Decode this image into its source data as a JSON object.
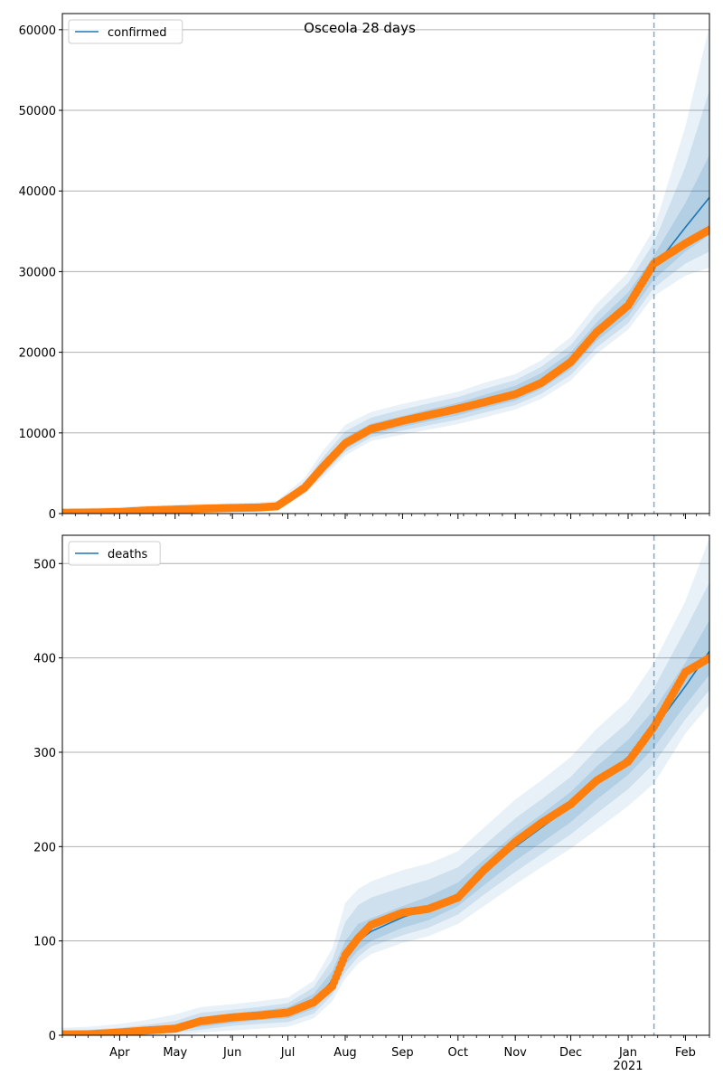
{
  "figure": {
    "title": "Osceola 28 days"
  },
  "colors": {
    "model": "#1f77b4",
    "observed": "#ff7f0e",
    "band": "#1f77b4",
    "grid": "#b0b0b0",
    "cutoff": "#1f77b4"
  },
  "chart_data": [
    {
      "type": "line",
      "name": "confirmed-panel",
      "legend": "confirmed",
      "legend_loc": "top-left",
      "x_range": [
        "2020-03-01",
        "2021-02-14"
      ],
      "ylim": [
        0,
        62000
      ],
      "yticks": [
        0,
        10000,
        20000,
        30000,
        40000,
        50000,
        60000
      ],
      "grid": "y",
      "forecast_start": "2021-01-15",
      "observed": {
        "x": [
          "2020-03-01",
          "2020-03-15",
          "2020-04-01",
          "2020-04-15",
          "2020-05-01",
          "2020-05-15",
          "2020-06-01",
          "2020-06-15",
          "2020-06-25",
          "2020-07-01",
          "2020-07-10",
          "2020-07-20",
          "2020-08-01",
          "2020-08-15",
          "2020-09-01",
          "2020-09-15",
          "2020-10-01",
          "2020-10-15",
          "2020-11-01",
          "2020-11-15",
          "2020-12-01",
          "2020-12-15",
          "2021-01-01",
          "2021-01-15",
          "2021-02-01",
          "2021-02-14"
        ],
        "y": [
          100,
          120,
          200,
          380,
          500,
          600,
          700,
          750,
          900,
          1800,
          3200,
          5800,
          8700,
          10500,
          11500,
          12200,
          13000,
          13800,
          14800,
          16200,
          18800,
          22500,
          25800,
          31000,
          33500,
          35200
        ]
      },
      "fit": {
        "x": [
          "2020-03-01",
          "2020-03-15",
          "2020-04-01",
          "2020-04-15",
          "2020-05-01",
          "2020-05-15",
          "2020-06-01",
          "2020-06-15",
          "2020-06-25",
          "2020-07-01",
          "2020-07-10",
          "2020-07-20",
          "2020-08-01",
          "2020-08-15",
          "2020-09-01",
          "2020-09-15",
          "2020-10-01",
          "2020-10-15",
          "2020-11-01",
          "2020-11-15",
          "2020-12-01",
          "2020-12-15",
          "2021-01-01",
          "2021-01-15",
          "2021-02-01",
          "2021-02-14"
        ],
        "y": [
          100,
          120,
          200,
          380,
          500,
          600,
          700,
          750,
          900,
          1800,
          3100,
          5500,
          8600,
          10400,
          11400,
          12200,
          13000,
          13900,
          15000,
          16500,
          19000,
          22600,
          26000,
          30500,
          35500,
          39200
        ]
      },
      "bands": [
        {
          "lower": [
            0,
            0,
            50,
            200,
            300,
            400,
            500,
            550,
            650,
            1300,
            2400,
            4500,
            7200,
            9000,
            9800,
            10400,
            11100,
            11900,
            12900,
            14200,
            16500,
            19800,
            22800,
            27000,
            29500,
            30500
          ],
          "upper": [
            600,
            700,
            800,
            1000,
            1100,
            1200,
            1300,
            1400,
            1600,
            2700,
            4400,
            7800,
            11000,
            12600,
            13600,
            14300,
            15100,
            16200,
            17300,
            19000,
            21900,
            26000,
            29900,
            35300,
            48000,
            60500
          ]
        },
        {
          "lower": [
            20,
            40,
            100,
            260,
            360,
            460,
            560,
            610,
            720,
            1450,
            2650,
            4850,
            7650,
            9450,
            10300,
            10950,
            11650,
            12500,
            13450,
            14850,
            17200,
            20600,
            23600,
            28000,
            31000,
            32500
          ],
          "upper": [
            350,
            400,
            500,
            700,
            800,
            900,
            1000,
            1050,
            1250,
            2300,
            3850,
            7000,
            10200,
            11900,
            12900,
            13650,
            14450,
            15450,
            16550,
            18200,
            20900,
            24800,
            28600,
            33600,
            43000,
            52500
          ]
        },
        {
          "lower": [
            50,
            70,
            140,
            310,
            420,
            520,
            620,
            670,
            790,
            1580,
            2830,
            5140,
            8020,
            9800,
            10750,
            11450,
            12200,
            13050,
            14000,
            15450,
            17900,
            21400,
            24500,
            29000,
            32500,
            34500
          ],
          "upper": [
            200,
            230,
            320,
            490,
            600,
            700,
            800,
            850,
            1030,
            2050,
            3450,
            6300,
            9450,
            11150,
            12100,
            12900,
            13750,
            14700,
            15850,
            17400,
            20000,
            23700,
            27400,
            32000,
            38500,
            44500
          ]
        }
      ]
    },
    {
      "type": "line",
      "name": "deaths-panel",
      "legend": "deaths",
      "legend_loc": "top-left",
      "x_range": [
        "2020-03-01",
        "2021-02-14"
      ],
      "ylim": [
        0,
        530
      ],
      "yticks": [
        0,
        100,
        200,
        300,
        400,
        500
      ],
      "grid": "y",
      "forecast_start": "2021-01-15",
      "x_tick_labels": [
        {
          "label": "Apr",
          "date": "2020-04-01"
        },
        {
          "label": "May",
          "date": "2020-05-01"
        },
        {
          "label": "Jun",
          "date": "2020-06-01"
        },
        {
          "label": "Jul",
          "date": "2020-07-01"
        },
        {
          "label": "Aug",
          "date": "2020-08-01"
        },
        {
          "label": "Sep",
          "date": "2020-09-01"
        },
        {
          "label": "Oct",
          "date": "2020-10-01"
        },
        {
          "label": "Nov",
          "date": "2020-11-01"
        },
        {
          "label": "Dec",
          "date": "2020-12-01"
        },
        {
          "label": "Jan",
          "date": "2021-01-01",
          "sublabel": "2021"
        },
        {
          "label": "Feb",
          "date": "2021-02-01"
        }
      ],
      "observed": {
        "x": [
          "2020-03-01",
          "2020-03-15",
          "2020-04-01",
          "2020-04-15",
          "2020-05-01",
          "2020-05-15",
          "2020-06-01",
          "2020-06-15",
          "2020-07-01",
          "2020-07-15",
          "2020-07-25",
          "2020-08-01",
          "2020-08-08",
          "2020-08-15",
          "2020-09-01",
          "2020-09-15",
          "2020-10-01",
          "2020-10-15",
          "2020-11-01",
          "2020-11-15",
          "2020-12-01",
          "2020-12-15",
          "2021-01-01",
          "2021-01-15",
          "2021-02-01",
          "2021-02-14"
        ],
        "y": [
          1,
          1,
          3,
          5,
          7,
          15,
          19,
          21,
          24,
          35,
          52,
          85,
          103,
          117,
          130,
          134,
          146,
          175,
          205,
          225,
          245,
          270,
          290,
          327,
          385,
          400
        ]
      },
      "fit": {
        "x": [
          "2020-03-01",
          "2020-03-15",
          "2020-04-01",
          "2020-04-15",
          "2020-05-01",
          "2020-05-15",
          "2020-06-01",
          "2020-06-15",
          "2020-07-01",
          "2020-07-15",
          "2020-07-25",
          "2020-08-01",
          "2020-08-08",
          "2020-08-15",
          "2020-09-01",
          "2020-09-15",
          "2020-10-01",
          "2020-10-15",
          "2020-11-01",
          "2020-11-15",
          "2020-12-01",
          "2020-12-15",
          "2021-01-01",
          "2021-01-15",
          "2021-02-01",
          "2021-02-14"
        ],
        "y": [
          1,
          1,
          3,
          5,
          8,
          14,
          18,
          21,
          24,
          36,
          58,
          85,
          100,
          110,
          125,
          135,
          150,
          172,
          200,
          220,
          243,
          268,
          295,
          325,
          370,
          407
        ]
      },
      "bands": [
        {
          "lower": [
            0,
            0,
            0,
            0,
            0,
            3,
            5,
            7,
            9,
            18,
            36,
            60,
            76,
            86,
            98,
            105,
            118,
            137,
            160,
            178,
            198,
            218,
            243,
            267,
            320,
            350
          ],
          "upper": [
            8,
            9,
            12,
            16,
            22,
            30,
            33,
            36,
            40,
            58,
            92,
            140,
            155,
            163,
            175,
            182,
            195,
            220,
            250,
            270,
            295,
            325,
            355,
            395,
            460,
            527
          ]
        },
        {
          "lower": [
            0,
            0,
            1,
            2,
            3,
            6,
            10,
            12,
            14,
            23,
            43,
            67,
            83,
            94,
            106,
            114,
            128,
            149,
            173,
            192,
            213,
            235,
            261,
            288,
            335,
            366
          ],
          "upper": [
            5,
            6,
            8,
            11,
            15,
            24,
            27,
            30,
            34,
            51,
            80,
            120,
            138,
            146,
            157,
            165,
            178,
            201,
            230,
            250,
            274,
            303,
            332,
            368,
            430,
            480
          ]
        },
        {
          "lower": [
            0,
            0,
            2,
            3,
            5,
            9,
            13,
            16,
            18,
            28,
            49,
            74,
            90,
            100,
            114,
            122,
            137,
            159,
            185,
            204,
            226,
            250,
            276,
            305,
            350,
            382
          ],
          "upper": [
            3,
            4,
            6,
            8,
            11,
            19,
            23,
            26,
            30,
            44,
            68,
            100,
            118,
            124,
            137,
            147,
            162,
            186,
            214,
            234,
            258,
            285,
            313,
            345,
            395,
            440
          ]
        }
      ]
    }
  ]
}
